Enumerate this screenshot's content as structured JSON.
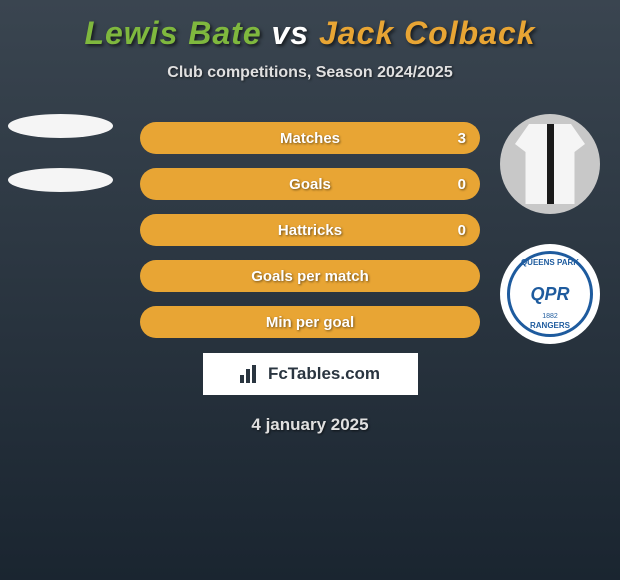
{
  "title": {
    "player1": "Lewis Bate",
    "vs": "vs",
    "player2": "Jack Colback",
    "player1_color": "#7fb83e",
    "vs_color": "#ffffff",
    "player2_color": "#e8a534"
  },
  "subtitle": "Club competitions, Season 2024/2025",
  "stats": [
    {
      "label": "Matches",
      "left_value": "",
      "right_value": "3",
      "left_pct": 0,
      "right_pct": 100,
      "right_color": "#e8a534",
      "left_color": "#7fb83e"
    },
    {
      "label": "Goals",
      "left_value": "",
      "right_value": "0",
      "left_pct": 0,
      "right_pct": 100,
      "right_color": "#e8a534",
      "left_color": "#7fb83e"
    },
    {
      "label": "Hattricks",
      "left_value": "",
      "right_value": "0",
      "left_pct": 0,
      "right_pct": 100,
      "right_color": "#e8a534",
      "left_color": "#7fb83e"
    },
    {
      "label": "Goals per match",
      "left_value": "",
      "right_value": "",
      "left_pct": 0,
      "right_pct": 100,
      "right_color": "#e8a534",
      "left_color": "#7fb83e"
    },
    {
      "label": "Min per goal",
      "left_value": "",
      "right_value": "",
      "left_pct": 0,
      "right_pct": 100,
      "right_color": "#e8a534",
      "left_color": "#7fb83e"
    }
  ],
  "watermark": "FcTables.com",
  "date": "4 january 2025",
  "qpr": {
    "top": "QUEENS PARK",
    "center": "QPR",
    "bottom": "RANGERS",
    "year": "1882"
  },
  "colors": {
    "left_accent": "#7fb83e",
    "right_accent": "#e8a534",
    "background_top": "#3a4550",
    "background_bottom": "#1a2530"
  }
}
